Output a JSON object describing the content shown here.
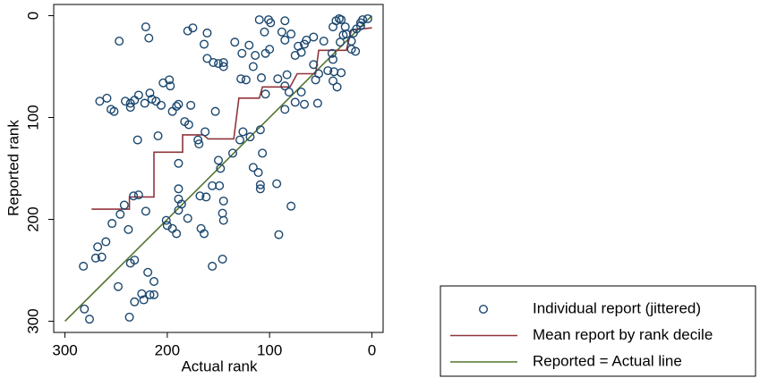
{
  "chart_data": {
    "type": "scatter",
    "x_label": "Actual rank",
    "y_label": "Reported rank",
    "xlim": [
      311,
      -11
    ],
    "ylim": [
      311,
      -11
    ],
    "xticks": [
      300,
      200,
      100,
      0
    ],
    "yticks": [
      0,
      100,
      200,
      300
    ],
    "legend": "bottom-right",
    "series": [
      {
        "name": "Individual report (jittered)",
        "type": "scatter",
        "color": "#1a476f",
        "x": [
          247,
          221,
          218,
          266,
          259,
          255,
          252,
          241,
          236,
          236,
          232,
          228,
          222,
          217,
          215,
          211,
          206,
          204,
          198,
          197,
          195,
          191,
          189,
          229,
          209,
          183,
          179,
          177,
          170,
          153,
          163,
          161,
          164,
          169,
          175,
          180,
          161,
          155,
          150,
          145,
          145,
          134,
          127,
          120,
          128,
          123,
          116,
          110,
          101,
          99,
          105,
          85,
          88,
          85,
          79,
          72,
          69,
          75,
          64,
          66,
          57,
          47,
          100,
          104,
          114,
          108,
          104,
          92,
          85,
          83,
          81,
          69,
          75,
          85,
          57,
          55,
          52,
          43,
          38,
          37,
          30,
          34,
          39,
          38,
          53,
          66,
          31,
          38,
          35,
          32,
          30,
          26,
          25,
          18,
          15,
          11,
          9,
          16,
          20,
          11,
          4,
          20,
          28,
          282,
          276,
          281,
          270,
          268,
          264,
          260,
          248,
          254,
          246,
          242,
          238,
          236,
          232,
          232,
          225,
          223,
          219,
          217,
          213,
          213,
          237,
          228,
          233,
          221,
          201,
          200,
          195,
          191,
          189,
          189,
          189,
          189,
          186,
          180,
          167,
          164,
          168,
          162,
          156,
          150,
          148,
          149,
          146,
          145,
          146,
          145,
          156,
          136,
          129,
          119,
          116,
          111,
          109,
          109,
          107,
          93,
          91,
          79,
          109,
          126
        ],
        "values": [
          25,
          11,
          22,
          84,
          81,
          92,
          94,
          84,
          86,
          90,
          83,
          78,
          86,
          76,
          82,
          84,
          88,
          66,
          63,
          69,
          94,
          89,
          87,
          122,
          118,
          104,
          107,
          88,
          122,
          94,
          114,
          42,
          28,
          126,
          12,
          15,
          17,
          46,
          47,
          46,
          50,
          26,
          37,
          29,
          62,
          63,
          50,
          4,
          4,
          7,
          16,
          5,
          16,
          24,
          18,
          30,
          36,
          39,
          24,
          28,
          21,
          25,
          33,
          37,
          39,
          61,
          77,
          62,
          69,
          58,
          75,
          75,
          85,
          92,
          48,
          63,
          57,
          54,
          64,
          55,
          56,
          70,
          37,
          43,
          86,
          87,
          26,
          11,
          5,
          3,
          4,
          11,
          18,
          17,
          13,
          10,
          4,
          35,
          33,
          7,
          3,
          25,
          19,
          246,
          298,
          288,
          238,
          227,
          237,
          222,
          266,
          204,
          195,
          186,
          210,
          243,
          240,
          281,
          273,
          279,
          252,
          274,
          274,
          261,
          296,
          176,
          177,
          192,
          201,
          206,
          209,
          214,
          191,
          180,
          170,
          145,
          185,
          199,
          209,
          214,
          177,
          178,
          246,
          142,
          150,
          167,
          194,
          201,
          239,
          182,
          167,
          135,
          122,
          119,
          149,
          154,
          166,
          170,
          135,
          165,
          215,
          187,
          112,
          114
        ]
      },
      {
        "name": "Mean report by rank decile",
        "type": "line",
        "color": "#90353b",
        "x": [
          274,
          237,
          237,
          213,
          213,
          185,
          185,
          165,
          160,
          135,
          130,
          110,
          107,
          80,
          73,
          55,
          52,
          25,
          20,
          0
        ],
        "values": [
          190,
          190,
          178,
          178,
          134,
          134,
          117,
          117,
          121,
          121,
          81,
          81,
          70,
          70,
          57,
          57,
          34,
          34,
          14,
          12
        ]
      },
      {
        "name": "Reported = Actual line",
        "type": "line",
        "color": "#55752f",
        "x": [
          300,
          0
        ],
        "values": [
          300,
          0
        ]
      }
    ]
  }
}
